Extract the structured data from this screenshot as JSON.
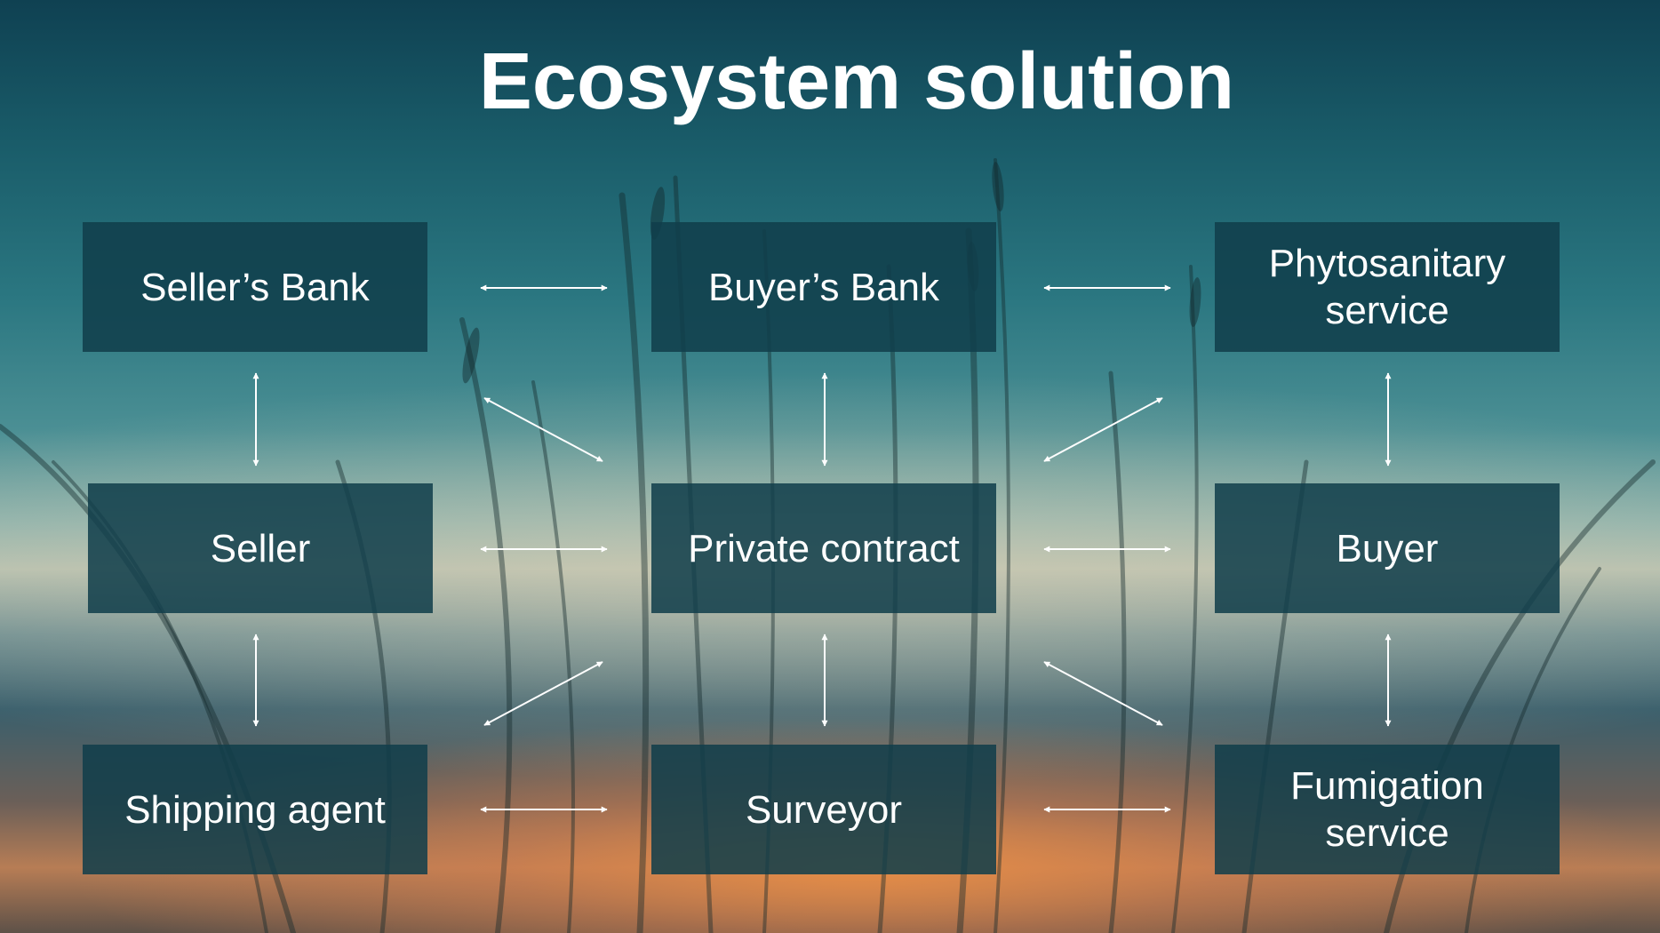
{
  "slide": {
    "title": "Ecosystem solution"
  },
  "nodes": {
    "sellers_bank": "Seller’s Bank",
    "buyers_bank": "Buyer’s Bank",
    "phytosanitary_service": "Phytosanitary service",
    "seller": "Seller",
    "private_contract": "Private contract",
    "buyer": "Buyer",
    "shipping_agent": "Shipping agent",
    "surveyor": "Surveyor",
    "fumigation_service": "Fumigation service"
  },
  "colors": {
    "box_fill": "#103e4a",
    "text": "#ffffff",
    "arrow": "#ffffff"
  },
  "connections": [
    {
      "from": "sellers_bank",
      "to": "buyers_bank",
      "type": "bidirectional"
    },
    {
      "from": "buyers_bank",
      "to": "phytosanitary_service",
      "type": "bidirectional"
    },
    {
      "from": "sellers_bank",
      "to": "seller",
      "type": "bidirectional"
    },
    {
      "from": "buyers_bank",
      "to": "private_contract",
      "type": "bidirectional"
    },
    {
      "from": "phytosanitary_service",
      "to": "buyer",
      "type": "bidirectional"
    },
    {
      "from": "sellers_bank",
      "to": "private_contract",
      "type": "bidirectional"
    },
    {
      "from": "phytosanitary_service",
      "to": "private_contract",
      "type": "bidirectional"
    },
    {
      "from": "seller",
      "to": "private_contract",
      "type": "bidirectional"
    },
    {
      "from": "private_contract",
      "to": "buyer",
      "type": "bidirectional"
    },
    {
      "from": "seller",
      "to": "shipping_agent",
      "type": "bidirectional"
    },
    {
      "from": "private_contract",
      "to": "surveyor",
      "type": "bidirectional"
    },
    {
      "from": "buyer",
      "to": "fumigation_service",
      "type": "bidirectional"
    },
    {
      "from": "shipping_agent",
      "to": "private_contract",
      "type": "bidirectional"
    },
    {
      "from": "fumigation_service",
      "to": "private_contract",
      "type": "bidirectional"
    },
    {
      "from": "shipping_agent",
      "to": "surveyor",
      "type": "bidirectional"
    },
    {
      "from": "surveyor",
      "to": "fumigation_service",
      "type": "bidirectional"
    }
  ]
}
